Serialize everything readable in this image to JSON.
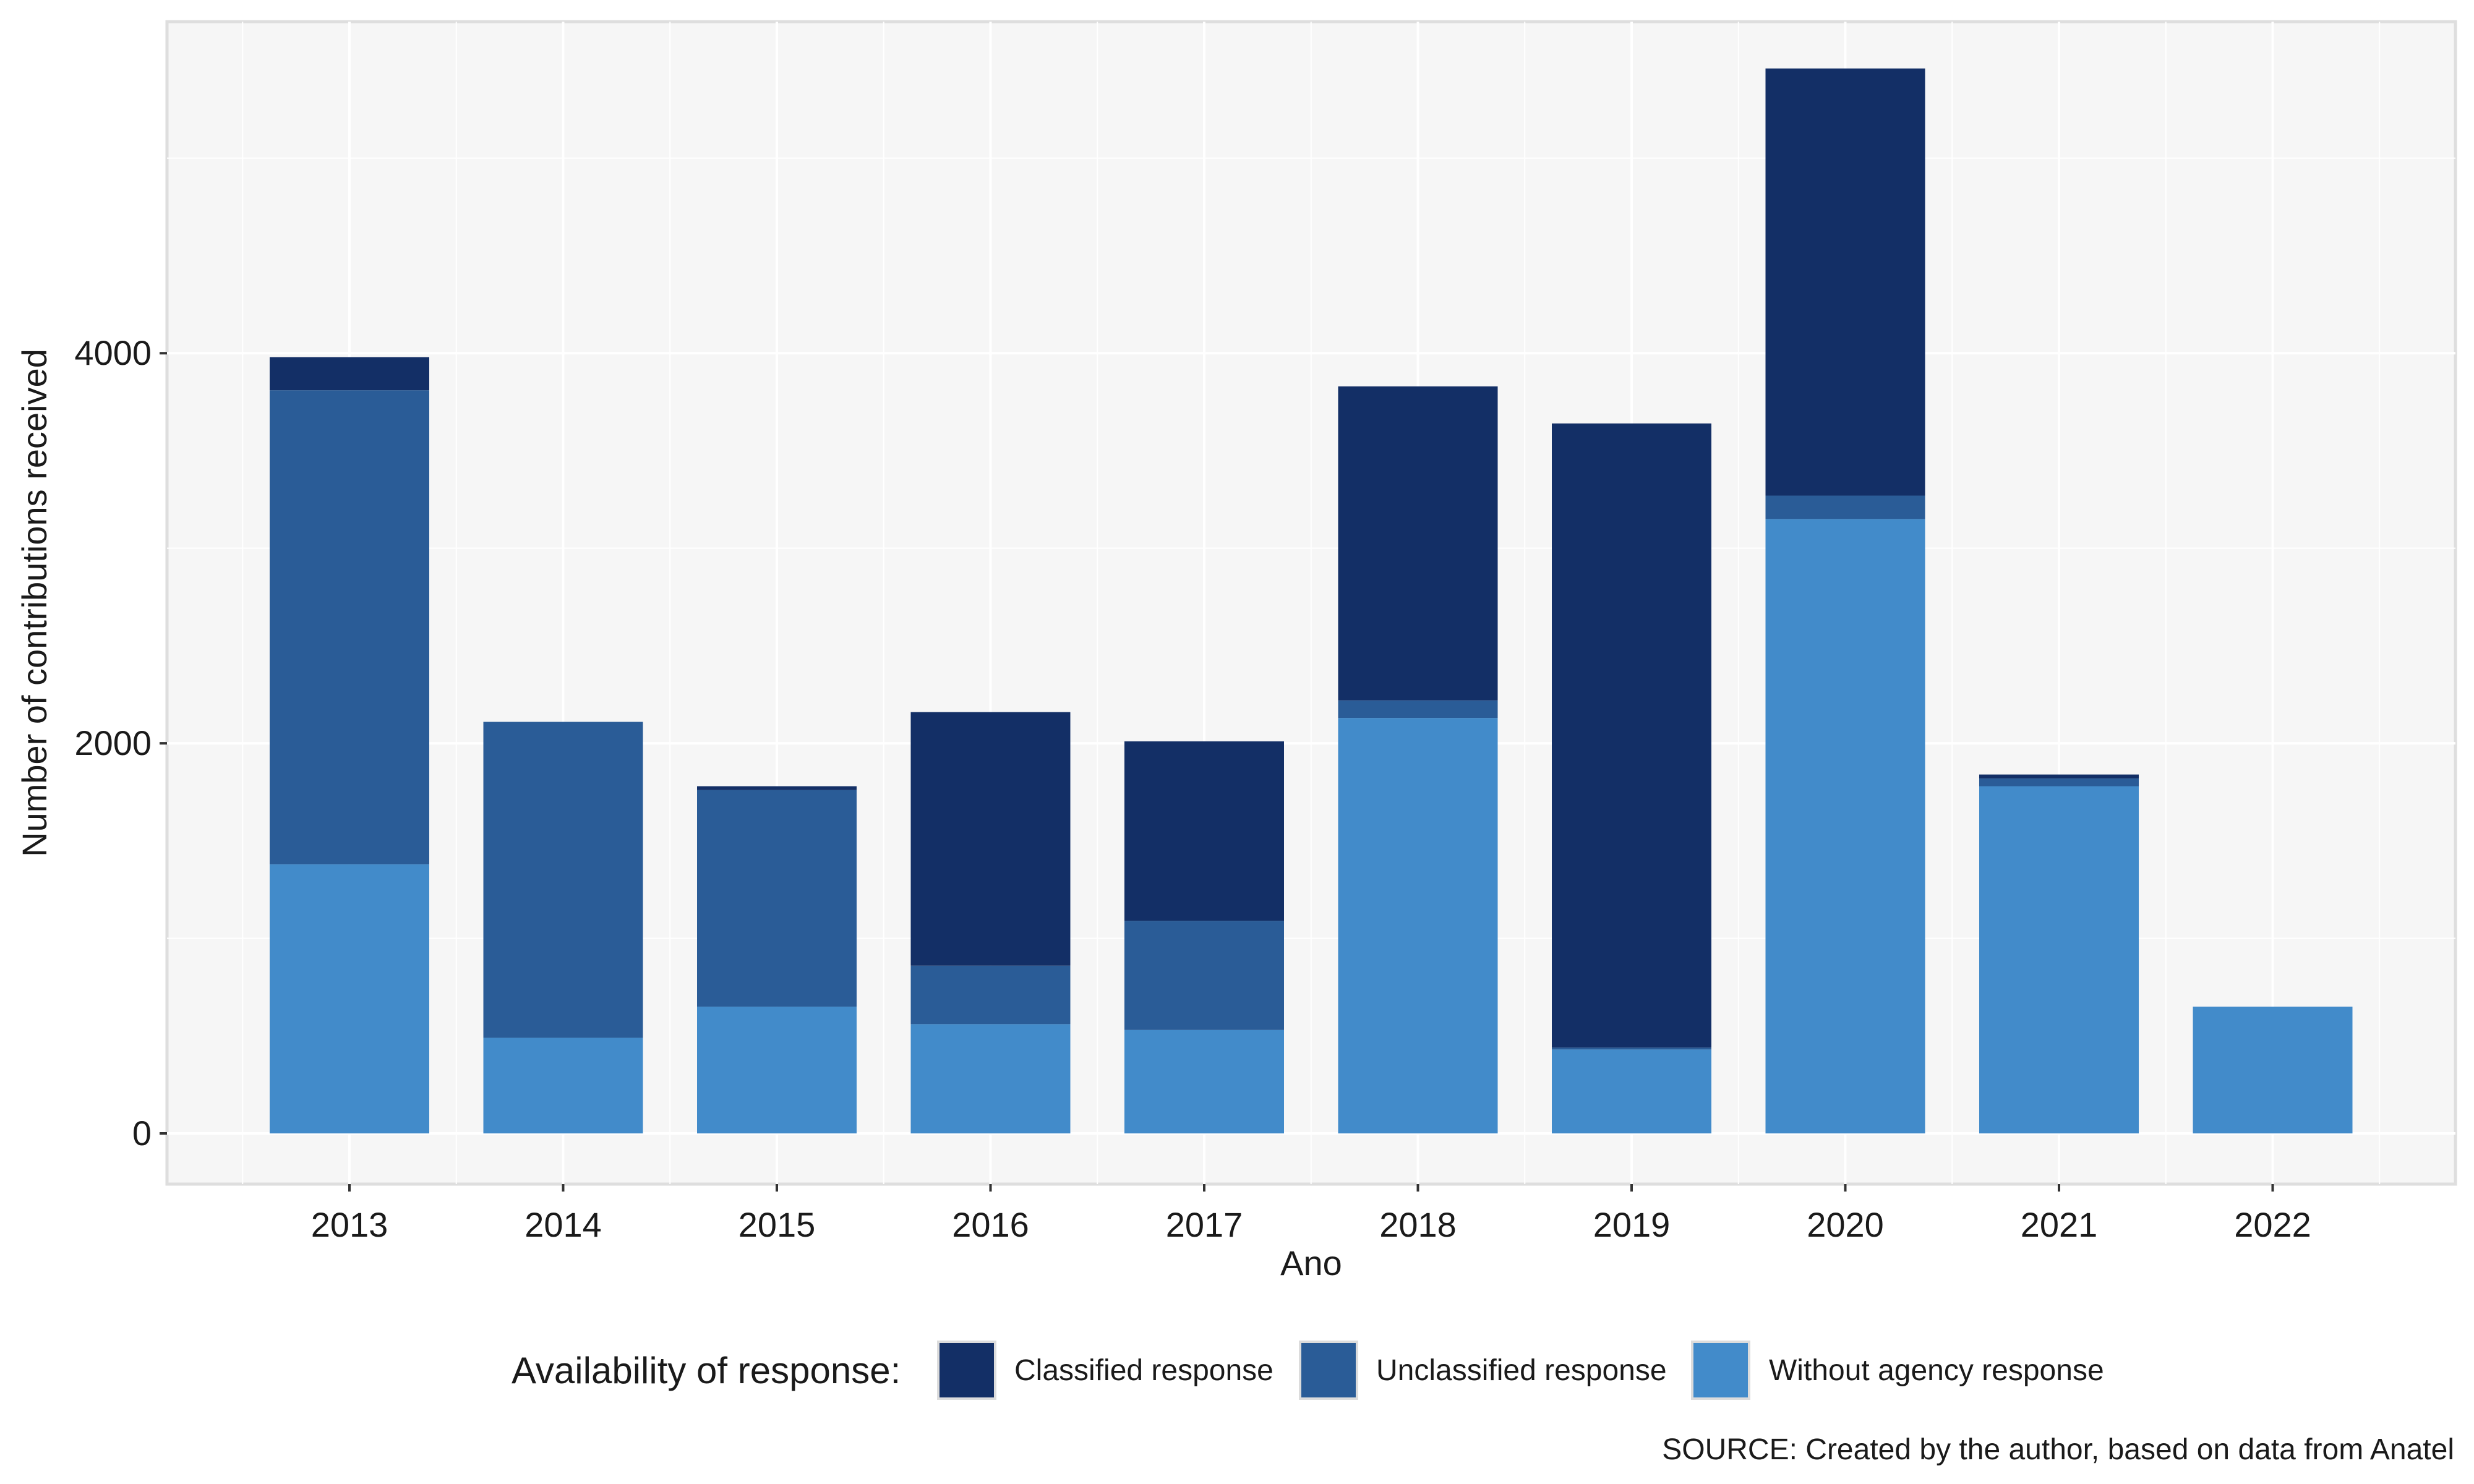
{
  "chart_data": {
    "type": "bar",
    "stacked": true,
    "categories": [
      "2013",
      "2014",
      "2015",
      "2016",
      "2017",
      "2018",
      "2019",
      "2020",
      "2021",
      "2022"
    ],
    "series": [
      {
        "name": "Without agency response",
        "color": "#428bca",
        "values": [
          1380,
          490,
          650,
          560,
          530,
          2130,
          430,
          3150,
          1780,
          650
        ]
      },
      {
        "name": "Unclassified response",
        "color": "#2a5c97",
        "values": [
          2430,
          1620,
          1110,
          300,
          560,
          90,
          10,
          120,
          40,
          0
        ]
      },
      {
        "name": "Classified response",
        "color": "#132f66",
        "values": [
          170,
          0,
          20,
          1300,
          920,
          1610,
          3200,
          2190,
          20,
          0
        ]
      }
    ],
    "xlabel": "Ano",
    "ylabel": "Number of contributions received",
    "ylim": [
      -260,
      5700
    ],
    "yticks": [
      0,
      2000,
      4000
    ],
    "yticks_labels": [
      "0",
      "2000",
      "4000"
    ],
    "grid": true,
    "legend": {
      "title": "Availability of response:",
      "position": "bottom",
      "order": [
        "Classified response",
        "Unclassified response",
        "Without agency response"
      ]
    },
    "caption": "SOURCE: Created by the author, based on data from Anatel"
  }
}
